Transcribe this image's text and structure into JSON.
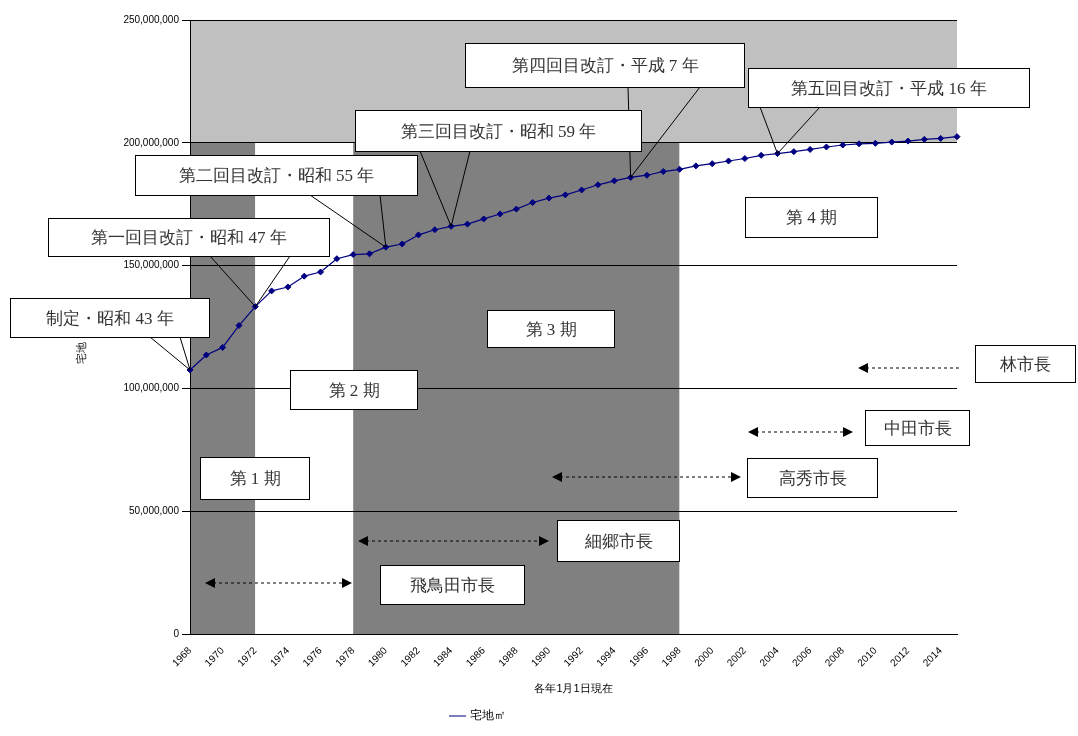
{
  "chart_data": {
    "type": "line",
    "xlabel": "各年1月1日現在",
    "ylabel": "宅地",
    "categories": [
      "1968",
      null,
      "1970",
      null,
      "1972",
      null,
      "1974",
      null,
      "1976",
      null,
      "1978",
      null,
      "1980",
      null,
      "1982",
      null,
      "1984",
      null,
      "1986",
      null,
      "1988",
      null,
      "1990",
      null,
      "1992",
      null,
      "1994",
      null,
      "1996",
      null,
      "1998",
      null,
      "2000",
      null,
      "2002",
      null,
      "2004",
      null,
      "2006",
      null,
      "2008",
      null,
      "2010",
      null,
      "2012",
      null,
      "2014",
      null
    ],
    "series": [
      {
        "name": "宅地㎡",
        "color": "#000080",
        "values": [
          107500000,
          113600000,
          116700000,
          125600000,
          133300000,
          139700000,
          141300000,
          145700000,
          147400000,
          152800000,
          154500000,
          154800000,
          157500000,
          158800000,
          162500000,
          164600000,
          166000000,
          166900000,
          169000000,
          171000000,
          173000000,
          175700000,
          177500000,
          178800000,
          180800000,
          182900000,
          184500000,
          185900000,
          186800000,
          188300000,
          189200000,
          190600000,
          191500000,
          192600000,
          193600000,
          194900000,
          195600000,
          196400000,
          197300000,
          198300000,
          199100000,
          199600000,
          199800000,
          200300000,
          200700000,
          201400000,
          201800000,
          202500000
        ]
      }
    ],
    "ylim": [
      0,
      250000000
    ],
    "yticks": [
      0,
      {
        "value": 50000000,
        "label": "50,000,000"
      },
      {
        "value": 100000000,
        "label": "100,000,000"
      },
      {
        "value": 150000000,
        "label": "150,000,000"
      },
      {
        "value": 200000000,
        "label": "200,000,000"
      },
      {
        "value": 250000000,
        "label": "250,000,000"
      }
    ],
    "grid": "y",
    "legend": "bottom",
    "marker": "diamond",
    "line_style": "solid",
    "bands": [
      {
        "axis": "x",
        "from": "1968",
        "to": "1972",
        "label": "第 1 期",
        "color": "#808080"
      },
      {
        "axis": "x",
        "from": "1972",
        "to": "1978",
        "label": "第 2 期",
        "color": "#ffffff"
      },
      {
        "axis": "x",
        "from": "1978",
        "to": "1998",
        "label": "第 3 期",
        "color": "#808080"
      },
      {
        "axis": "x",
        "from": "1998",
        "to": "2014",
        "label": "第 4 期",
        "color": "#ffffff"
      },
      {
        "axis": "y",
        "from": 200000000,
        "to": 250000000,
        "label": null,
        "color": "#c0c0c0"
      }
    ],
    "annotations": [
      "制定・昭和 43 年",
      "第一回目改訂・昭和 47 年",
      "第二回目改訂・昭和 55 年",
      "第三回目改訂・昭和 59 年",
      "第四回目改訂・平成 7 年",
      "第五回目改訂・平成 16 年",
      "飛鳥田市長",
      "細郷市長",
      "高秀市長",
      "中田市長",
      "林市長"
    ]
  }
}
